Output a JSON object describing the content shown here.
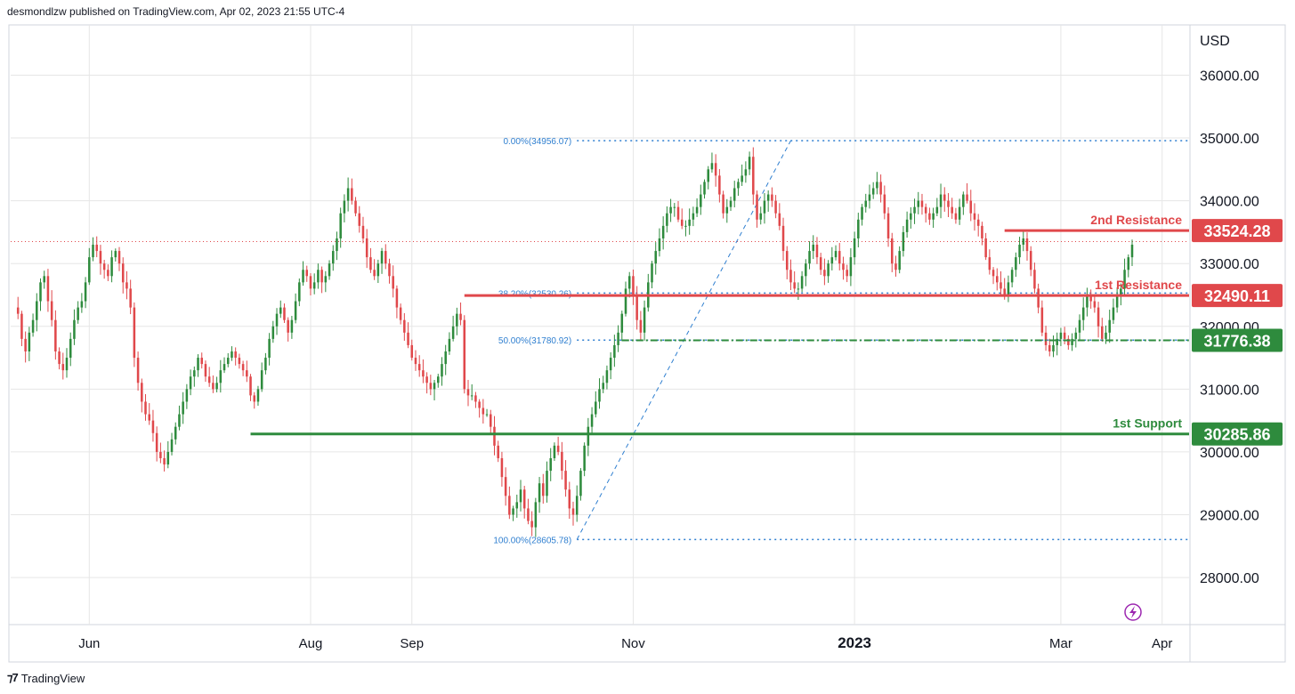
{
  "header": {
    "published": "desmondlzw published on TradingView.com, Apr 02, 2023 21:55 UTC-4"
  },
  "footer": {
    "brand": "TradingView",
    "logo_icon": "tradingview-logo-icon"
  },
  "colors": {
    "up": "#2e8b3d",
    "down": "#e0484b",
    "support": "#2e8b3d",
    "resistance": "#e0484b",
    "fib": "#2f7fd0",
    "grid": "#e6e6e6"
  },
  "chart_data": {
    "type": "candlestick",
    "currency_label": "USD",
    "y_ticks": [
      "36000.00",
      "35000.00",
      "34000.00",
      "33000.00",
      "32000.00",
      "31000.00",
      "30000.00",
      "29000.00",
      "28000.00"
    ],
    "y_tick_values": [
      36000,
      35000,
      34000,
      33000,
      32000,
      31000,
      30000,
      29000,
      28000
    ],
    "ylim": [
      27250,
      36800
    ],
    "x_ticks": [
      {
        "label": "Jun",
        "bold": false
      },
      {
        "label": "Aug",
        "bold": false
      },
      {
        "label": "Sep",
        "bold": false
      },
      {
        "label": "Nov",
        "bold": false
      },
      {
        "label": "2023",
        "bold": true
      },
      {
        "label": "Mar",
        "bold": false
      },
      {
        "label": "Apr",
        "bold": false
      }
    ],
    "x_tick_index": [
      20,
      79,
      106,
      165,
      224,
      279,
      306
    ],
    "last_price": 33350,
    "levels": [
      {
        "name": "2nd Resistance",
        "value": 33524.28,
        "price_label": "33524.28",
        "kind": "resistance",
        "start_index": 264
      },
      {
        "name": "1st Resistance",
        "value": 32490.11,
        "price_label": "32490.11",
        "kind": "resistance",
        "start_index": 120
      },
      {
        "name": "",
        "value": 31776.38,
        "price_label": "31776.38",
        "kind": "support_dashed",
        "start_index": 162
      },
      {
        "name": "1st Support",
        "value": 30285.86,
        "price_label": "30285.86",
        "kind": "support",
        "start_index": 63
      }
    ],
    "fib": [
      {
        "label": "0.00%(34956.07)",
        "value": 34956.07
      },
      {
        "label": "38.20%(32530.26)",
        "value": 32530.26
      },
      {
        "label": "50.00%(31780.92)",
        "value": 31780.92
      },
      {
        "label": "100.00%(28605.78)",
        "value": 28605.78
      }
    ],
    "fib_start_index": 150,
    "fib_trend": {
      "from_index": 150,
      "from_value": 28605.78,
      "to_index": 207,
      "to_value": 34956.07
    },
    "closes": [
      32300,
      32200,
      31800,
      31600,
      31900,
      32100,
      32400,
      32700,
      32800,
      32400,
      32100,
      31600,
      31400,
      31300,
      31500,
      31800,
      32100,
      32300,
      32400,
      32700,
      33100,
      33300,
      33200,
      33000,
      32900,
      32800,
      33100,
      33200,
      33000,
      32700,
      32600,
      32300,
      31500,
      31100,
      30800,
      30600,
      30500,
      30300,
      30000,
      29900,
      29800,
      30000,
      30200,
      30400,
      30600,
      30800,
      31000,
      31200,
      31300,
      31500,
      31400,
      31200,
      31100,
      31000,
      31100,
      31300,
      31400,
      31500,
      31600,
      31500,
      31400,
      31300,
      31200,
      30900,
      30800,
      31000,
      31300,
      31500,
      31800,
      32000,
      32200,
      32300,
      32100,
      31900,
      32100,
      32400,
      32700,
      32900,
      32800,
      32600,
      32700,
      32900,
      32700,
      32800,
      33000,
      33200,
      33400,
      33800,
      34000,
      34200,
      34000,
      33800,
      33600,
      33400,
      33100,
      32900,
      32800,
      33000,
      33200,
      33000,
      32800,
      32600,
      32300,
      32100,
      31900,
      31700,
      31500,
      31400,
      31300,
      31200,
      31100,
      31000,
      31100,
      31200,
      31400,
      31600,
      31800,
      32000,
      32200,
      32100,
      31000,
      30900,
      30900,
      30800,
      30700,
      30600,
      30600,
      30400,
      30100,
      29900,
      29600,
      29300,
      29000,
      29100,
      29200,
      29400,
      29100,
      28900,
      28800,
      29200,
      29500,
      29300,
      29700,
      29900,
      30100,
      30000,
      29700,
      29400,
      29100,
      29000,
      29300,
      29700,
      30100,
      30400,
      30600,
      30800,
      31000,
      31100,
      31300,
      31500,
      31700,
      31900,
      32200,
      32600,
      32800,
      32500,
      32100,
      31900,
      32300,
      32700,
      33000,
      33200,
      33400,
      33600,
      33800,
      33900,
      33900,
      33700,
      33600,
      33600,
      33700,
      33800,
      33900,
      34100,
      34300,
      34500,
      34600,
      34400,
      34100,
      33800,
      33900,
      34000,
      34200,
      34300,
      34400,
      34500,
      34700,
      34100,
      33700,
      33800,
      34000,
      34100,
      34000,
      33800,
      33600,
      33200,
      32900,
      32700,
      32600,
      32600,
      32800,
      33000,
      33200,
      33300,
      33100,
      32900,
      32800,
      33000,
      33100,
      33200,
      33000,
      32900,
      32800,
      33100,
      33400,
      33700,
      33900,
      34000,
      34100,
      34200,
      34300,
      34100,
      33800,
      33400,
      33000,
      32900,
      33200,
      33500,
      33700,
      33800,
      33900,
      34000,
      33900,
      33800,
      33700,
      33800,
      33900,
      34100,
      34000,
      33900,
      33800,
      33700,
      33900,
      34100,
      34000,
      33800,
      33700,
      33600,
      33400,
      33100,
      32900,
      32800,
      32700,
      32600,
      32500,
      32700,
      32900,
      33100,
      33300,
      33400,
      33200,
      32900,
      32600,
      32300,
      31900,
      31700,
      31600,
      31700,
      31800,
      31900,
      31800,
      31700,
      31800,
      31900,
      32100,
      32300,
      32500,
      32400,
      32300,
      32000,
      31800,
      31900,
      32100,
      32300,
      32500,
      32600,
      32900,
      33100,
      33300
    ]
  }
}
